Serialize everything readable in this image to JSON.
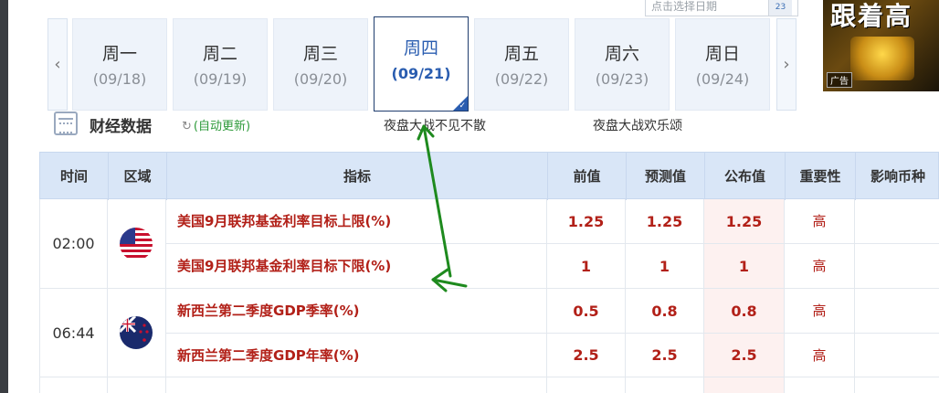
{
  "date_picker": {
    "placeholder": "点击选择日期",
    "calendar_icon_text": "23"
  },
  "ad": {
    "title": "跟着高",
    "label": "广告"
  },
  "week_nav": {
    "days": [
      {
        "name": "周一",
        "date": "(09/18)",
        "active": false
      },
      {
        "name": "周二",
        "date": "(09/19)",
        "active": false
      },
      {
        "name": "周三",
        "date": "(09/20)",
        "active": false
      },
      {
        "name": "周四",
        "date": "(09/21)",
        "active": true
      },
      {
        "name": "周五",
        "date": "(09/22)",
        "active": false
      },
      {
        "name": "周六",
        "date": "(09/23)",
        "active": false
      },
      {
        "name": "周日",
        "date": "(09/24)",
        "active": false
      }
    ],
    "prev_icon": "‹",
    "next_icon": "›"
  },
  "section": {
    "title": "财经数据",
    "auto_update": "(自动更新)",
    "ticker": [
      "夜盘大战不见不散",
      "夜盘大战欢乐颂"
    ]
  },
  "table": {
    "headers": [
      "时间",
      "区域",
      "指标",
      "前值",
      "预测值",
      "公布值",
      "重要性",
      "影响币种"
    ],
    "rows": [
      {
        "time": "02:00",
        "region_icon": "us-flag-icon",
        "indicator": "美国9月联邦基金利率目标上限(%)",
        "prev": "1.25",
        "forecast": "1.25",
        "actual": "1.25",
        "importance": "高",
        "currency": ""
      },
      {
        "time": "",
        "region_icon": "",
        "indicator": "美国9月联邦基金利率目标下限(%)",
        "prev": "1",
        "forecast": "1",
        "actual": "1",
        "importance": "高",
        "currency": ""
      },
      {
        "time": "06:44",
        "region_icon": "nz-flag-icon",
        "indicator": "新西兰第二季度GDP季率(%)",
        "prev": "0.5",
        "forecast": "0.8",
        "actual": "0.8",
        "importance": "高",
        "currency": ""
      },
      {
        "time": "",
        "region_icon": "",
        "indicator": "新西兰第二季度GDP年率(%)",
        "prev": "2.5",
        "forecast": "2.5",
        "actual": "2.5",
        "importance": "高",
        "currency": ""
      }
    ]
  },
  "colors": {
    "accent": "#2a5db0",
    "value_red": "#b22018",
    "header_bg": "#d9e6f7",
    "annotation_green": "#1e8a1e"
  }
}
